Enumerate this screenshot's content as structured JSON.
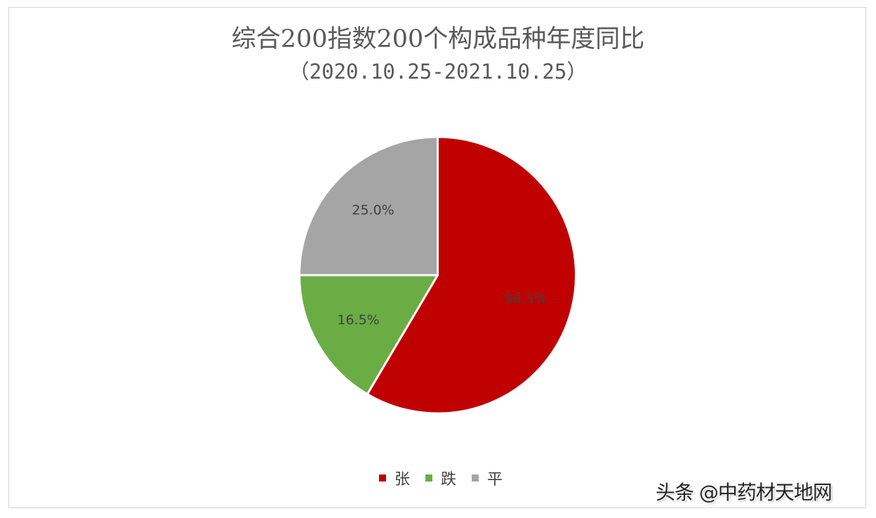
{
  "chart_data": {
    "type": "pie",
    "title": "综合200指数200个构成品种年度同比",
    "subtitle": "（2020.10.25-2021.10.25）",
    "categories": [
      "张",
      "跌",
      "平"
    ],
    "values": [
      58.5,
      16.5,
      25.0
    ],
    "unit": "%",
    "labels": [
      "58.5%",
      "16.5%",
      "25.0%"
    ],
    "colors": [
      "#c00000",
      "#6aad45",
      "#a5a5a5"
    ],
    "legend_position": "bottom",
    "start_angle_deg": 0,
    "direction": "clockwise"
  },
  "legend": {
    "items": [
      {
        "label": "张",
        "color": "#c00000"
      },
      {
        "label": "跌",
        "color": "#6aad45"
      },
      {
        "label": "平",
        "color": "#a5a5a5"
      }
    ]
  },
  "watermark": {
    "text": "头条 @中药材天地网"
  }
}
